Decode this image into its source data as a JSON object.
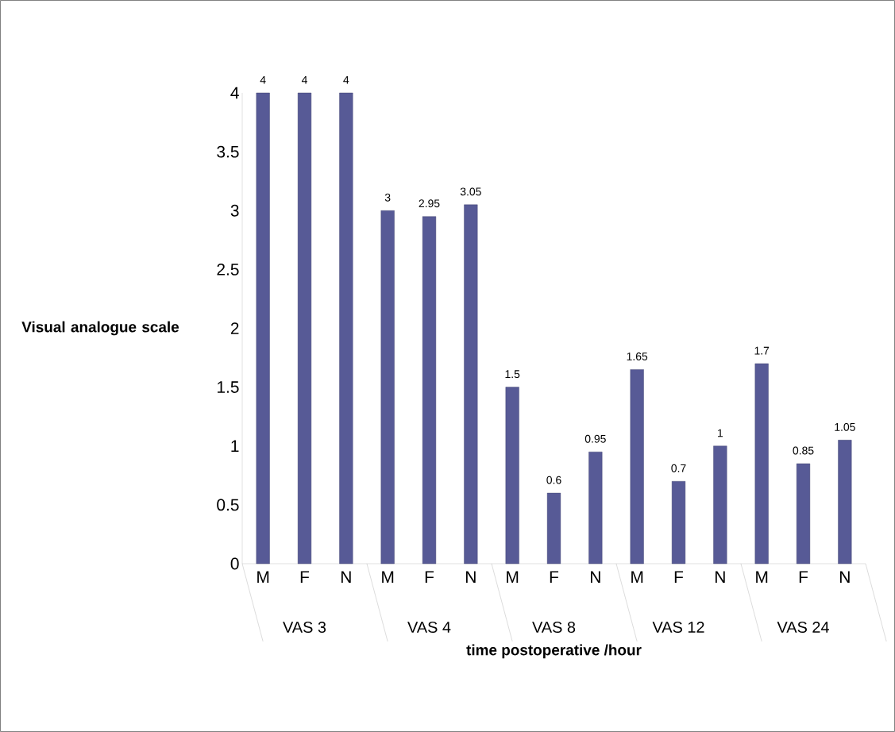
{
  "chart_data": {
    "type": "bar",
    "xlabel": "time postoperative /hour",
    "ylabel": "Visual analogue scale",
    "categories": [
      "M",
      "F",
      "N",
      "M",
      "F",
      "N",
      "M",
      "F",
      "N",
      "M",
      "F",
      "N",
      "M",
      "F",
      "N"
    ],
    "values": [
      4,
      4,
      4,
      3,
      2.95,
      3.05,
      1.5,
      0.6,
      0.95,
      1.65,
      0.7,
      1,
      1.7,
      0.85,
      1.05
    ],
    "color": "#575a96",
    "data_labels": true,
    "ylim": [
      0,
      4
    ],
    "yticks": [
      0,
      0.5,
      1,
      1.5,
      2,
      2.5,
      3,
      3.5,
      4
    ],
    "annotations": [
      "VAS 3",
      "VAS 4",
      "VAS 8",
      "VAS 12",
      "VAS 24"
    ]
  }
}
